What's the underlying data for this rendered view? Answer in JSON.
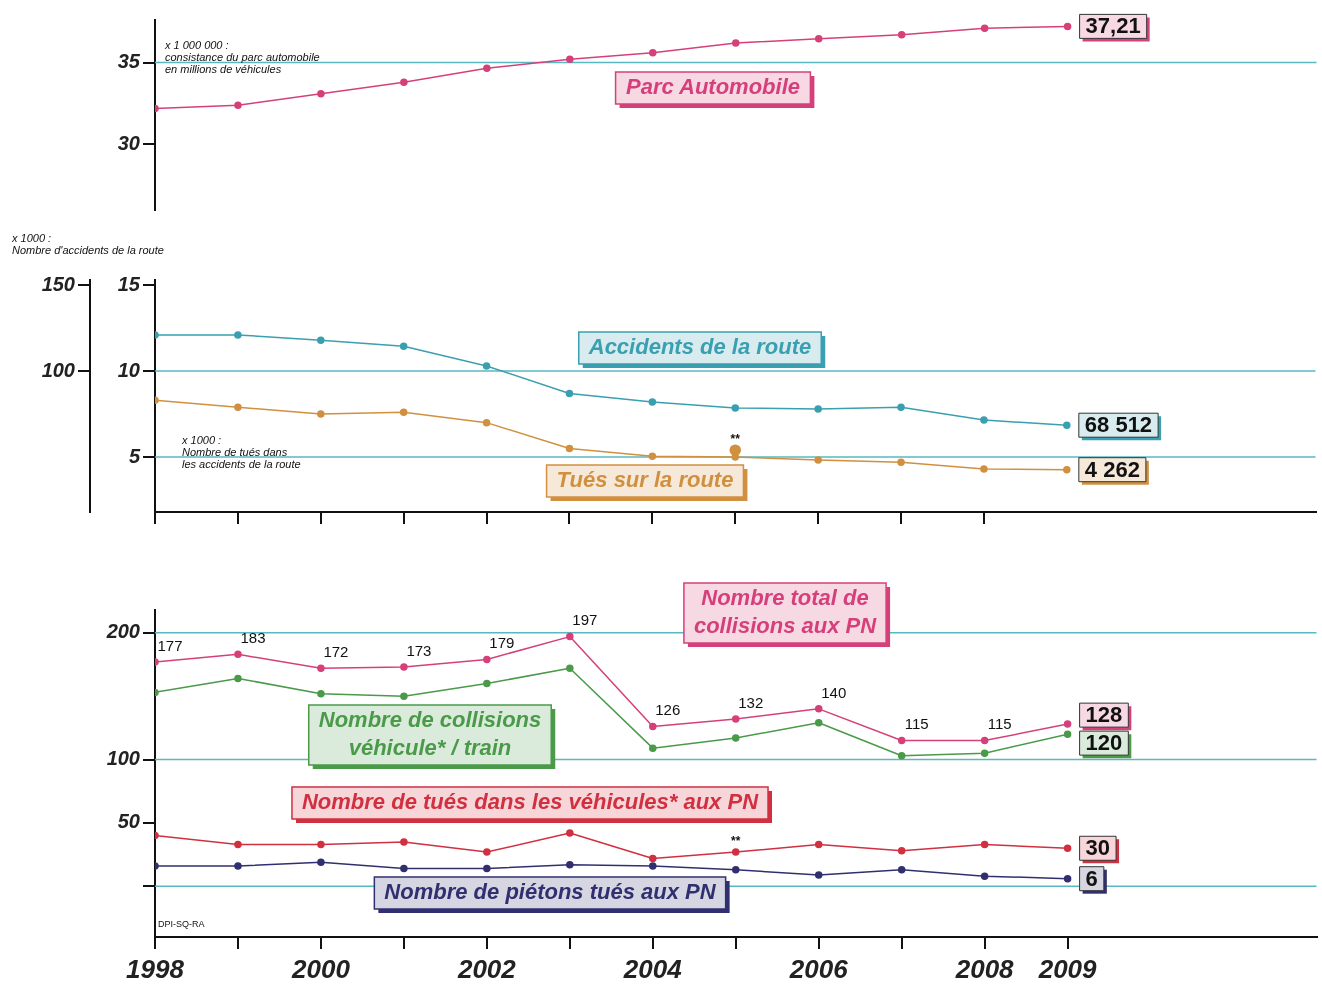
{
  "chart_data": [
    {
      "type": "line",
      "ylabel": "x 1 000 000 :\nconsistance du parc automobile\nen millions de véhicules",
      "x": [
        1998,
        1999,
        2000,
        2001,
        2002,
        2003,
        2004,
        2005,
        2006,
        2007,
        2008,
        2009
      ],
      "xlim": [
        1998,
        2012
      ],
      "ylim": [
        26,
        37.6
      ],
      "yticks": [
        35,
        30
      ],
      "tick_labels": "y",
      "marker": "circle",
      "ref_lines": [
        {
          "axis": "y",
          "value": 35,
          "color": "#5ab8c0"
        }
      ],
      "series": [
        {
          "name": "Parc Automobile",
          "color": "#d6407a",
          "values": [
            32.2,
            32.4,
            33.1,
            33.8,
            34.65,
            35.2,
            35.6,
            36.2,
            36.45,
            36.7,
            37.1,
            37.21
          ],
          "value_labels": [
            null,
            null,
            null,
            null,
            null,
            null,
            null,
            null,
            null,
            null,
            null,
            "37,21"
          ]
        }
      ]
    },
    {
      "type": "line",
      "ylabel": "x 1000 :\nNombre de tués dans\nles accidents de la route",
      "y2label": "x 1000 :\nNombre d'accidents de la route",
      "x": [
        1998,
        1999,
        2000,
        2001,
        2002,
        2003,
        2004,
        2005,
        2006,
        2007,
        2008,
        2009
      ],
      "xlim": [
        1998,
        2012
      ],
      "xticks": [
        {
          "value": 1998,
          "label": null
        },
        {
          "value": 1999,
          "label": null
        },
        {
          "value": 2000,
          "label": null
        },
        {
          "value": 2001,
          "label": null
        },
        {
          "value": 2002,
          "label": null
        },
        {
          "value": 2003,
          "label": null
        },
        {
          "value": 2004,
          "label": null
        },
        {
          "value": 2005,
          "label": null
        },
        {
          "value": 2006,
          "label": null
        },
        {
          "value": 2007,
          "label": null
        },
        {
          "value": 2008,
          "label": null
        }
      ],
      "ylim": [
        1.8,
        15.3
      ],
      "yticks": [
        15,
        10,
        5
      ],
      "y2lim": [
        18,
        153
      ],
      "y2ticks": [
        150,
        100
      ],
      "tick_labels": "y",
      "marker": "circle",
      "ref_lines": [
        {
          "axis": "y",
          "value": 10,
          "color": "#5ab8c0"
        },
        {
          "axis": "y",
          "value": 5,
          "color": "#5ab8c0"
        }
      ],
      "annotations": [
        {
          "text": "**",
          "x": 2005,
          "y": 5.4
        },
        "68 512",
        "4 262"
      ],
      "series": [
        {
          "name": "Accidents de la route",
          "color": "#3a9fb0",
          "axis": "y2",
          "values": [
            121,
            121,
            118,
            114.5,
            103,
            87,
            82,
            78.5,
            78,
            79,
            71.5,
            68.512
          ]
        },
        {
          "name": "Tués sur la route",
          "color": "#d09040",
          "values": [
            8.3,
            7.9,
            7.5,
            7.6,
            7.0,
            5.5,
            5.05,
            5.0,
            4.83,
            4.7,
            4.3,
            4.262
          ]
        },
        {
          "type": "scatter",
          "color": "#d09040",
          "x": [
            2005
          ],
          "values": [
            5.4
          ]
        }
      ]
    },
    {
      "type": "line",
      "x": [
        1998,
        1999,
        2000,
        2001,
        2002,
        2003,
        2004,
        2005,
        2006,
        2007,
        2008,
        2009
      ],
      "xlim": [
        1998,
        2012
      ],
      "xticks": [
        1998,
        {
          "value": 1999,
          "label": null
        },
        2000,
        {
          "value": 2001,
          "label": null
        },
        2002,
        {
          "value": 2003,
          "label": null
        },
        2004,
        {
          "value": 2005,
          "label": null
        },
        2006,
        {
          "value": 2007,
          "label": null
        },
        2008,
        2009
      ],
      "ylim": [
        -40,
        218
      ],
      "yticks": [
        200,
        100,
        50,
        {
          "value": 0,
          "label": null
        }
      ],
      "marker": "circle",
      "ref_lines": [
        {
          "axis": "y",
          "value": 200,
          "color": "#5ab8c0"
        },
        {
          "axis": "y",
          "value": 100,
          "color": "#5ab8c0"
        },
        {
          "axis": "y",
          "value": 0,
          "color": "#5ab8c0"
        }
      ],
      "annotations": [
        {
          "text": "**",
          "x": 2005,
          "y": 27
        },
        "DPI-SQ-RA"
      ],
      "series": [
        {
          "name": "Nombre total de collisions aux PN",
          "color": "#d6407a",
          "values": [
            177,
            183,
            172,
            173,
            179,
            197,
            126,
            132,
            140,
            115,
            115,
            128
          ],
          "value_labels": [
            "177",
            "183",
            "172",
            "173",
            "179",
            "197",
            "126",
            "132",
            "140",
            "115",
            "115",
            "128"
          ]
        },
        {
          "name": "Nombre de collisions véhicule* / train",
          "color": "#4a9a4a",
          "values": [
            153,
            164,
            152,
            150,
            160,
            172,
            109,
            117,
            129,
            103,
            105,
            120
          ],
          "value_labels": [
            null,
            null,
            null,
            null,
            null,
            null,
            null,
            null,
            null,
            null,
            null,
            "120"
          ]
        },
        {
          "name": "Nombre de tués dans les véhicules* aux PN",
          "color": "#d03040",
          "values": [
            40,
            33,
            33,
            35,
            27,
            42,
            22,
            27,
            33,
            28,
            33,
            30
          ],
          "value_labels": [
            null,
            null,
            null,
            null,
            null,
            null,
            null,
            null,
            null,
            null,
            null,
            "30"
          ]
        },
        {
          "name": "Nombre de piétons tués aux PN",
          "color": "#303070",
          "values": [
            16,
            16,
            19,
            14,
            14,
            17,
            16,
            13,
            9,
            13,
            8,
            6
          ],
          "value_labels": [
            null,
            null,
            null,
            null,
            null,
            null,
            null,
            null,
            null,
            null,
            null,
            "6"
          ]
        }
      ]
    }
  ]
}
